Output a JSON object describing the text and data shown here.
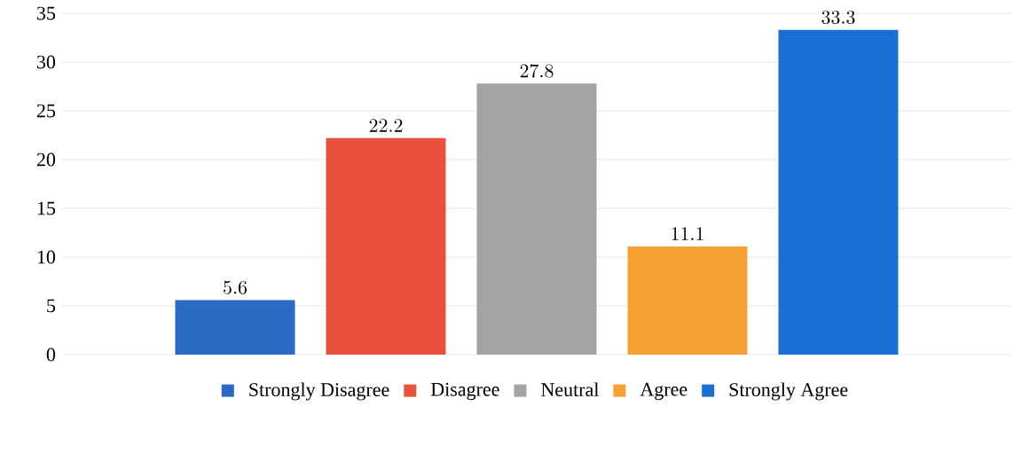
{
  "chart_data": {
    "type": "bar",
    "categories": [
      null
    ],
    "series": [
      {
        "name": "Strongly Disagree",
        "color": "#2a6ac4",
        "values": [
          5.6
        ]
      },
      {
        "name": "Disagree",
        "color": "#e8523c",
        "values": [
          22.2
        ]
      },
      {
        "name": "Neutral",
        "color": "#a3a3a3",
        "values": [
          27.8
        ]
      },
      {
        "name": "Agree",
        "color": "#f5a133",
        "values": [
          11.1
        ]
      },
      {
        "name": "Strongly Agree",
        "color": "#1b6fd2",
        "values": [
          33.3
        ]
      }
    ],
    "ylim": [
      0,
      35
    ],
    "yticks": [
      0,
      5,
      10,
      15,
      20,
      25,
      30,
      35
    ],
    "grid": "y",
    "legend": "bottom",
    "data_labels": true
  }
}
